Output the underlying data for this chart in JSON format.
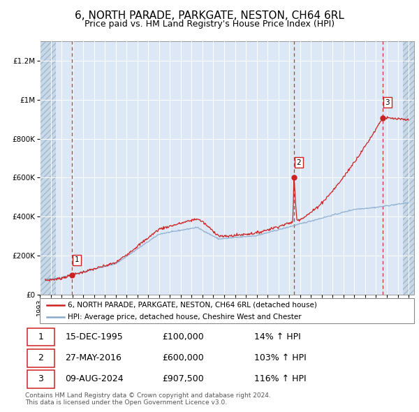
{
  "title": "6, NORTH PARADE, PARKGATE, NESTON, CH64 6RL",
  "subtitle": "Price paid vs. HM Land Registry's House Price Index (HPI)",
  "xlim": [
    1993.0,
    2027.5
  ],
  "ylim": [
    0,
    1300000
  ],
  "yticks": [
    0,
    200000,
    400000,
    600000,
    800000,
    1000000,
    1200000
  ],
  "ytick_labels": [
    "£0",
    "£200K",
    "£400K",
    "£600K",
    "£800K",
    "£1M",
    "£1.2M"
  ],
  "sale_dates": [
    1995.96,
    2016.41,
    2024.6
  ],
  "sale_prices": [
    100000,
    600000,
    907500
  ],
  "sale_labels": [
    "1",
    "2",
    "3"
  ],
  "vline_dates": [
    1995.96,
    2016.41,
    2024.6
  ],
  "legend_line1": "6, NORTH PARADE, PARKGATE, NESTON, CH64 6RL (detached house)",
  "legend_line2": "HPI: Average price, detached house, Cheshire West and Chester",
  "table_rows": [
    [
      "1",
      "15-DEC-1995",
      "£100,000",
      "14% ↑ HPI"
    ],
    [
      "2",
      "27-MAY-2016",
      "£600,000",
      "103% ↑ HPI"
    ],
    [
      "3",
      "09-AUG-2024",
      "£907,500",
      "116% ↑ HPI"
    ]
  ],
  "footnote": "Contains HM Land Registry data © Crown copyright and database right 2024.\nThis data is licensed under the Open Government Licence v3.0.",
  "plot_bg_color": "#dce8f5",
  "grid_color": "#ffffff",
  "red_line_color": "#cc2222",
  "blue_line_color": "#88aacc",
  "vline_color": "#cc3333",
  "marker_color": "#cc2222",
  "title_fontsize": 11,
  "subtitle_fontsize": 9,
  "tick_fontsize": 7.5,
  "hatch_left_end": 1994.5,
  "hatch_right_start": 2026.5
}
